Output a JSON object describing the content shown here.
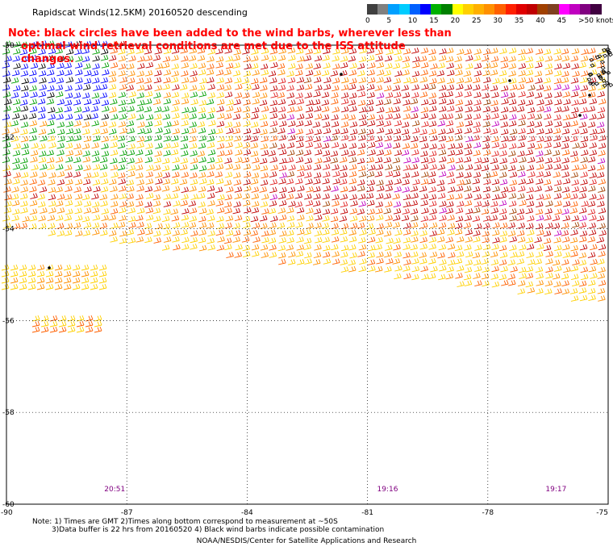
{
  "title": "Rapidscat Winds(12.5KM) 20160520 descending",
  "warning": {
    "line1": "Note: black circles have been added to the wind barbs, wherever less than",
    "line2": "optimal wind retrieval conditions are met due to the ISS attitude changes."
  },
  "legend": {
    "units": ">50 knots",
    "bins": [
      {
        "label": "0",
        "colors": [
          "#404040",
          "#808080"
        ]
      },
      {
        "label": "5",
        "colors": [
          "#00a0ff",
          "#00ccff"
        ]
      },
      {
        "label": "10",
        "colors": [
          "#0060ff",
          "#0000ff"
        ]
      },
      {
        "label": "15",
        "colors": [
          "#00b000",
          "#008000"
        ]
      },
      {
        "label": "20",
        "colors": [
          "#ffff00",
          "#ffd000"
        ]
      },
      {
        "label": "25",
        "colors": [
          "#ffb000",
          "#ff9000"
        ]
      },
      {
        "label": "30",
        "colors": [
          "#ff6000",
          "#ff2000"
        ]
      },
      {
        "label": "35",
        "colors": [
          "#e00000",
          "#c00000"
        ]
      },
      {
        "label": "40",
        "colors": [
          "#a04000",
          "#804020"
        ]
      },
      {
        "label": "45",
        "colors": [
          "#ff00ff",
          "#c000c0"
        ]
      },
      {
        "label": ">50",
        "colors": [
          "#800080",
          "#400040"
        ]
      }
    ]
  },
  "map": {
    "lon_range": [
      -90,
      -75
    ],
    "lat_range": [
      -60,
      -50
    ],
    "lon_ticks": [
      "-90",
      "-87",
      "-84",
      "-81",
      "-78",
      "-75"
    ],
    "lat_ticks": [
      "-50",
      "-52",
      "-54",
      "-56",
      "-58",
      "-60"
    ],
    "pass_times": [
      {
        "label": "20:51",
        "lon": -87.3
      },
      {
        "label": "19:16",
        "lon": -80.5
      },
      {
        "label": "19:17",
        "lon": -76.3
      }
    ],
    "time_color": "#800080",
    "swaths": [
      {
        "name": "main-swath",
        "color_mix": "orange-red-crimson"
      },
      {
        "name": "left-swath-fragment",
        "color_mix": "yellow-orange"
      }
    ]
  },
  "footnotes": {
    "line1": "Note: 1) Times are GMT 2)Times along bottom correspond to measurement at ~50S",
    "line2": "3)Data buffer is 22 hrs from 20160520 4) Black wind barbs indicate possible contamination"
  },
  "credit": "NOAA/NESDIS/Center for Satellite Applications and Research"
}
